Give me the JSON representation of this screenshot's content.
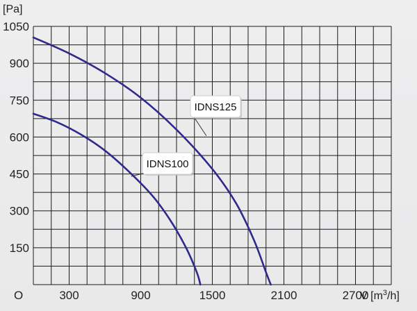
{
  "chart_data": {
    "type": "line",
    "title": "",
    "ylabel": "[Pa]",
    "xlabel": "V [m³/h]",
    "x_origin_label": "O",
    "xlim": [
      0,
      3000
    ],
    "ylim": [
      0,
      1050
    ],
    "x_ticks": [
      300,
      900,
      1500,
      2100,
      2700
    ],
    "y_ticks": [
      150,
      300,
      450,
      600,
      750,
      900,
      1050
    ],
    "grid": true,
    "colors": {
      "series": "#2e2a8a",
      "grid": "#1a1a1a",
      "background": "#ebebec"
    },
    "series": [
      {
        "name": "IDNS125",
        "x": [
          0,
          300,
          600,
          900,
          1200,
          1500,
          1700,
          1850,
          1950,
          1990
        ],
        "y": [
          1005,
          940,
          860,
          760,
          630,
          470,
          330,
          180,
          50,
          0
        ]
      },
      {
        "name": "IDNS100",
        "x": [
          0,
          200,
          400,
          600,
          800,
          1000,
          1150,
          1280,
          1370,
          1400
        ],
        "y": [
          695,
          660,
          610,
          545,
          460,
          360,
          260,
          150,
          50,
          0
        ]
      }
    ]
  }
}
